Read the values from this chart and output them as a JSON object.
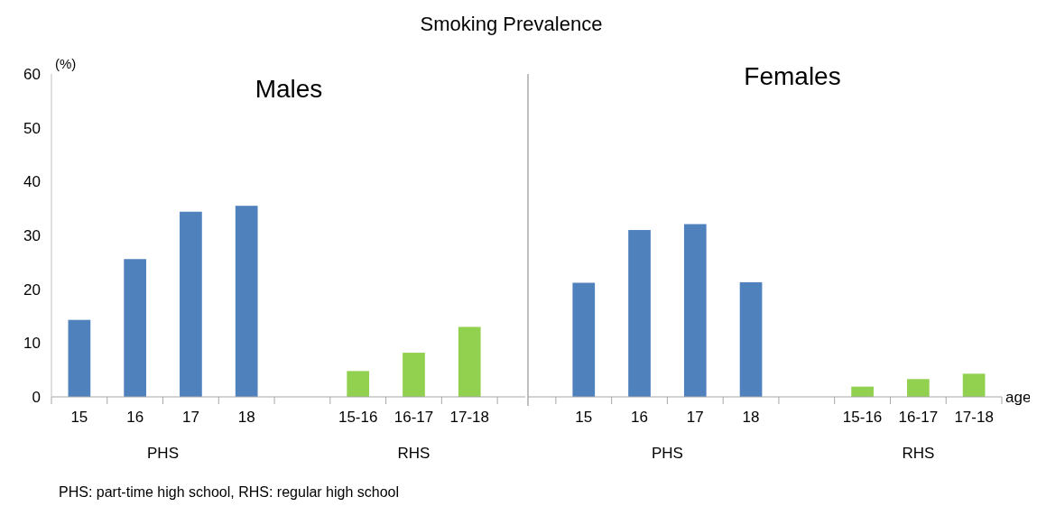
{
  "chart_data": [
    {
      "type": "bar",
      "title": "Smoking Prevalence",
      "subtitle": "Males",
      "ylabel": "(%)",
      "categories": [
        "15",
        "16",
        "17",
        "18",
        null,
        "15-16",
        "16-17",
        "17-18"
      ],
      "values": [
        14.3,
        25.6,
        34.4,
        35.5,
        null,
        4.8,
        8.2,
        13.0
      ],
      "colors": [
        "#4f81bd",
        "#4f81bd",
        "#4f81bd",
        "#4f81bd",
        null,
        "#92d050",
        "#92d050",
        "#92d050"
      ],
      "ylim": [
        0,
        60
      ],
      "yticks": [
        0,
        10,
        20,
        30,
        40,
        50,
        60
      ],
      "grid": false,
      "annotations": [
        "PHS",
        "RHS",
        "PHS: part-time high school, RHS: regular high school"
      ]
    },
    {
      "type": "bar",
      "subtitle": "Females",
      "xlabel": "age",
      "categories": [
        "15",
        "16",
        "17",
        "18",
        null,
        "15-16",
        "16-17",
        "17-18"
      ],
      "values": [
        21.2,
        31.0,
        32.1,
        21.3,
        null,
        1.9,
        3.3,
        4.3
      ],
      "colors": [
        "#4f81bd",
        "#4f81bd",
        "#4f81bd",
        "#4f81bd",
        null,
        "#92d050",
        "#92d050",
        "#92d050"
      ],
      "ylim": [
        0,
        60
      ],
      "yticks": [
        0,
        10,
        20,
        30,
        40,
        50,
        60
      ],
      "tick_labels": "x",
      "grid": false,
      "annotations": [
        "PHS",
        "RHS"
      ]
    }
  ]
}
